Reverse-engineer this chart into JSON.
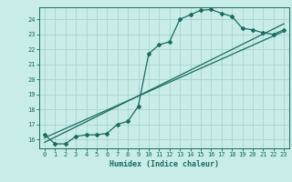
{
  "xlabel": "Humidex (Indice chaleur)",
  "ylabel": "",
  "bg_color": "#c8ece8",
  "grid_color": "#a8d4d0",
  "line_color": "#1a6b60",
  "x_ticks": [
    0,
    1,
    2,
    3,
    4,
    5,
    6,
    7,
    8,
    9,
    10,
    11,
    12,
    13,
    14,
    15,
    16,
    17,
    18,
    19,
    20,
    21,
    22,
    23
  ],
  "y_ticks": [
    16,
    17,
    18,
    19,
    20,
    21,
    22,
    23,
    24
  ],
  "xlim": [
    -0.5,
    23.5
  ],
  "ylim": [
    15.4,
    24.8
  ],
  "main_x": [
    0,
    1,
    2,
    3,
    4,
    5,
    6,
    7,
    8,
    9,
    10,
    11,
    12,
    13,
    14,
    15,
    16,
    17,
    18,
    19,
    20,
    21,
    22,
    23
  ],
  "main_y": [
    16.3,
    15.7,
    15.7,
    16.2,
    16.3,
    16.3,
    16.4,
    17.0,
    17.2,
    18.2,
    21.7,
    22.3,
    22.5,
    24.0,
    24.3,
    24.6,
    24.65,
    24.4,
    24.2,
    23.4,
    23.3,
    23.1,
    23.0,
    23.3
  ],
  "line1_x": [
    0,
    23
  ],
  "line1_y": [
    16.1,
    23.2
  ],
  "line2_x": [
    0,
    23
  ],
  "line2_y": [
    15.8,
    23.7
  ]
}
